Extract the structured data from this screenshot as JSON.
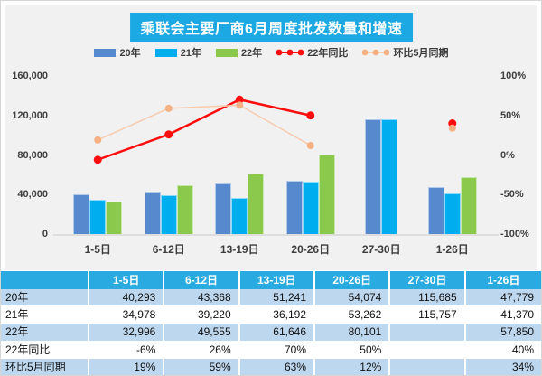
{
  "chart": {
    "title": "乘联会主要厂商6月周度批发数量和增速",
    "title_bg": "#1CA8E2",
    "panel_bg": "#F1F1F2"
  },
  "chart_data": {
    "type": "bar",
    "subtype": "combo-bar-line",
    "title": "乘联会主要厂商6月周度批发数量和增速",
    "categories": [
      "1-5日",
      "6-12日",
      "13-19日",
      "20-26日",
      "27-30日",
      "1-26日"
    ],
    "series": [
      {
        "name": "20年",
        "kind": "bar",
        "axis": "left",
        "color": "#5689CE",
        "values": [
          40293,
          43368,
          51241,
          54074,
          115685,
          47779
        ]
      },
      {
        "name": "21年",
        "kind": "bar",
        "axis": "left",
        "color": "#00AEEF",
        "values": [
          34978,
          39220,
          36192,
          53262,
          115757,
          41370
        ]
      },
      {
        "name": "22年",
        "kind": "bar",
        "axis": "left",
        "color": "#8BC94C",
        "values": [
          32996,
          49555,
          61646,
          80101,
          null,
          57850
        ]
      },
      {
        "name": "22年同比",
        "kind": "line",
        "axis": "right",
        "color": "#FE0D0D",
        "marker_color": "#FE0D0D",
        "stroke_width": 2.5,
        "marker_r": 4.5,
        "values": [
          -6,
          26,
          70,
          50,
          null,
          40
        ]
      },
      {
        "name": "环比5月同期",
        "kind": "line",
        "axis": "right",
        "color": "#F8CBAD",
        "marker_color": "#F5B183",
        "stroke_width": 1.5,
        "marker_r": 4,
        "values": [
          19,
          59,
          63,
          12,
          null,
          34
        ]
      }
    ],
    "left_axis": {
      "min": 0,
      "max": 160000,
      "ticks": [
        0,
        40000,
        80000,
        120000,
        160000
      ],
      "tick_labels": [
        "0",
        "40,000",
        "80,000",
        "120,000",
        "160,000"
      ]
    },
    "right_axis": {
      "min": -100,
      "max": 100,
      "ticks": [
        -100,
        -50,
        0,
        50,
        100
      ],
      "tick_labels": [
        "-100%",
        "-50%",
        "0%",
        "50%",
        "100%"
      ]
    },
    "legend_position": "top",
    "grid": false
  },
  "table": {
    "header": [
      "",
      "1-5日",
      "6-12日",
      "13-19日",
      "20-26日",
      "27-30日",
      "1-26日"
    ],
    "rows": [
      {
        "label": "20年",
        "cells": [
          "40,293",
          "43,368",
          "51,241",
          "54,074",
          "115,685",
          "47,779"
        ]
      },
      {
        "label": "21年",
        "cells": [
          "34,978",
          "39,220",
          "36,192",
          "53,262",
          "115,757",
          "41,370"
        ]
      },
      {
        "label": "22年",
        "cells": [
          "32,996",
          "49,555",
          "61,646",
          "80,101",
          "",
          "57,850"
        ]
      },
      {
        "label": "22年同比",
        "cells": [
          "-6%",
          "26%",
          "70%",
          "50%",
          "",
          "40%"
        ]
      },
      {
        "label": "环比5月同期",
        "cells": [
          "19%",
          "59%",
          "63%",
          "12%",
          "",
          "34%"
        ]
      }
    ],
    "header_bg": "#29ABE2",
    "row_alt_bg": "#BDD7EE",
    "row_bg": "#FFFFFF"
  }
}
